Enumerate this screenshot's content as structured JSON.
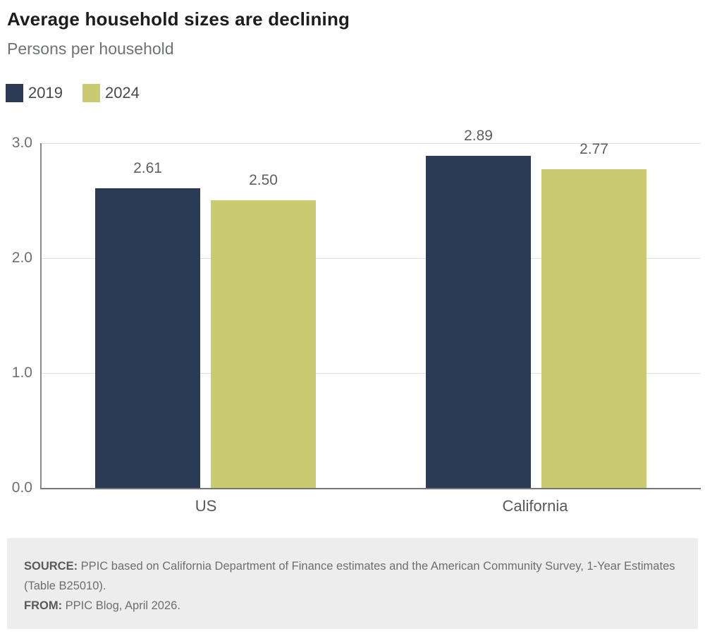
{
  "header": {
    "title": "Average household sizes are declining",
    "subtitle": "Persons per household"
  },
  "chart_data": {
    "type": "bar",
    "title": "Average household sizes are declining",
    "subtitle": "Persons per household",
    "categories": [
      "US",
      "California"
    ],
    "series": [
      {
        "name": "2019",
        "color": "#2b3a55",
        "values": [
          2.61,
          2.89
        ]
      },
      {
        "name": "2024",
        "color": "#caca73",
        "values": [
          2.5,
          2.77
        ]
      }
    ],
    "value_labels": [
      [
        "2.61",
        "2.50"
      ],
      [
        "2.89",
        "2.77"
      ]
    ],
    "ylim": [
      0,
      3.0
    ],
    "yticks": [
      "0.0",
      "1.0",
      "2.0",
      "3.0"
    ],
    "xlabel": "",
    "ylabel": "",
    "grid": true,
    "legend_position": "top-left",
    "colors": {
      "grid": "#e0e0e0",
      "axis": "#8a8a8a",
      "baseline": "#757575",
      "value_label": "#5c6064",
      "tick_label": "#6b7075"
    }
  },
  "footer": {
    "source_label": "SOURCE:",
    "source_text": " PPIC based on California Department of Finance estimates and the American Community Survey, 1-Year Estimates (Table B25010).",
    "from_label": "FROM:",
    "from_text": " PPIC Blog, April 2026."
  }
}
